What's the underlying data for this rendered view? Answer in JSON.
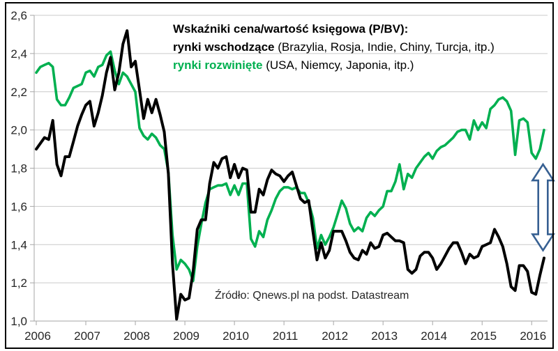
{
  "chart_data": {
    "type": "line",
    "title": "Wskaźniki cena/wartość księgowa (P/BV):",
    "legend": [
      {
        "label": "rynki wschodzące",
        "suffix": " (Brazylia, Rosja, Indie, Chiny, Turcja, itp.)",
        "color": "#000000"
      },
      {
        "label": "rynki rozwinięte",
        "suffix": " (USA, Niemcy, Japonia, itp.)",
        "color": "#00B050"
      }
    ],
    "source_note": "Źródło: Qnews.pl na podst. Datastream",
    "x_tick_labels": [
      "2006",
      "2007",
      "2008",
      "2009",
      "2010",
      "2011",
      "2012",
      "2013",
      "2014",
      "2015",
      "2016"
    ],
    "y_tick_labels": [
      "1,0",
      "1,2",
      "1,4",
      "1,6",
      "1,8",
      "2,0",
      "2,2",
      "2,4",
      "2,6"
    ],
    "ylim": [
      1.0,
      2.6
    ],
    "y_step": 0.2,
    "x_range_months": "Jan 2006 - Apr 2016",
    "grid": "horizontal-only",
    "series": [
      {
        "name": "rynki rozwinięte (developed markets P/BV)",
        "color": "#00B050",
        "values": [
          2.3,
          2.33,
          2.34,
          2.35,
          2.33,
          2.16,
          2.13,
          2.13,
          2.17,
          2.22,
          2.23,
          2.24,
          2.3,
          2.31,
          2.28,
          2.33,
          2.34,
          2.39,
          2.41,
          2.31,
          2.24,
          2.3,
          2.28,
          2.24,
          2.2,
          2.01,
          1.97,
          1.95,
          1.98,
          1.96,
          1.92,
          1.9,
          1.78,
          1.45,
          1.27,
          1.32,
          1.3,
          1.27,
          1.21,
          1.39,
          1.51,
          1.62,
          1.69,
          1.7,
          1.71,
          1.71,
          1.72,
          1.66,
          1.71,
          1.66,
          1.72,
          1.72,
          1.43,
          1.39,
          1.47,
          1.44,
          1.53,
          1.58,
          1.64,
          1.68,
          1.7,
          1.7,
          1.69,
          1.7,
          1.67,
          1.67,
          1.62,
          1.54,
          1.38,
          1.45,
          1.4,
          1.44,
          1.49,
          1.56,
          1.63,
          1.59,
          1.51,
          1.47,
          1.49,
          1.47,
          1.54,
          1.57,
          1.55,
          1.58,
          1.6,
          1.68,
          1.68,
          1.73,
          1.82,
          1.69,
          1.77,
          1.75,
          1.8,
          1.83,
          1.86,
          1.88,
          1.85,
          1.89,
          1.91,
          1.92,
          1.94,
          1.96,
          1.99,
          2.0,
          2.0,
          1.95,
          2.05,
          2.0,
          2.04,
          2.01,
          2.11,
          2.13,
          2.16,
          2.17,
          2.15,
          2.1,
          1.87,
          2.05,
          2.06,
          2.04,
          1.88,
          1.85,
          1.9,
          2.0
        ]
      },
      {
        "name": "rynki wschodzące (emerging markets P/BV)",
        "color": "#000000",
        "values": [
          1.9,
          1.93,
          1.96,
          1.95,
          2.05,
          1.82,
          1.76,
          1.86,
          1.86,
          1.94,
          2.02,
          2.08,
          2.13,
          2.15,
          2.02,
          2.09,
          2.18,
          2.3,
          2.38,
          2.21,
          2.3,
          2.45,
          2.52,
          2.33,
          2.36,
          2.21,
          2.06,
          2.16,
          2.09,
          2.16,
          2.08,
          1.99,
          1.77,
          1.3,
          1.01,
          1.14,
          1.11,
          1.12,
          1.26,
          1.48,
          1.53,
          1.53,
          1.72,
          1.83,
          1.8,
          1.85,
          1.86,
          1.75,
          1.82,
          1.75,
          1.8,
          1.79,
          1.57,
          1.57,
          1.69,
          1.66,
          1.74,
          1.79,
          1.77,
          1.76,
          1.73,
          1.76,
          1.78,
          1.71,
          1.64,
          1.62,
          1.63,
          1.47,
          1.32,
          1.41,
          1.33,
          1.37,
          1.47,
          1.47,
          1.47,
          1.42,
          1.36,
          1.33,
          1.32,
          1.37,
          1.35,
          1.41,
          1.38,
          1.39,
          1.45,
          1.46,
          1.44,
          1.42,
          1.42,
          1.41,
          1.27,
          1.25,
          1.27,
          1.34,
          1.36,
          1.36,
          1.33,
          1.27,
          1.3,
          1.34,
          1.38,
          1.41,
          1.41,
          1.36,
          1.3,
          1.35,
          1.33,
          1.34,
          1.39,
          1.4,
          1.41,
          1.48,
          1.44,
          1.39,
          1.3,
          1.18,
          1.16,
          1.29,
          1.29,
          1.26,
          1.15,
          1.14,
          1.24,
          1.33
        ]
      }
    ],
    "arrow_annotation": {
      "description": "double-headed vertical arrow marking gap between series at right edge",
      "from_value": 1.82,
      "to_value": 1.37,
      "outline_color": "#376092",
      "fill_color": "#ffffff"
    }
  }
}
